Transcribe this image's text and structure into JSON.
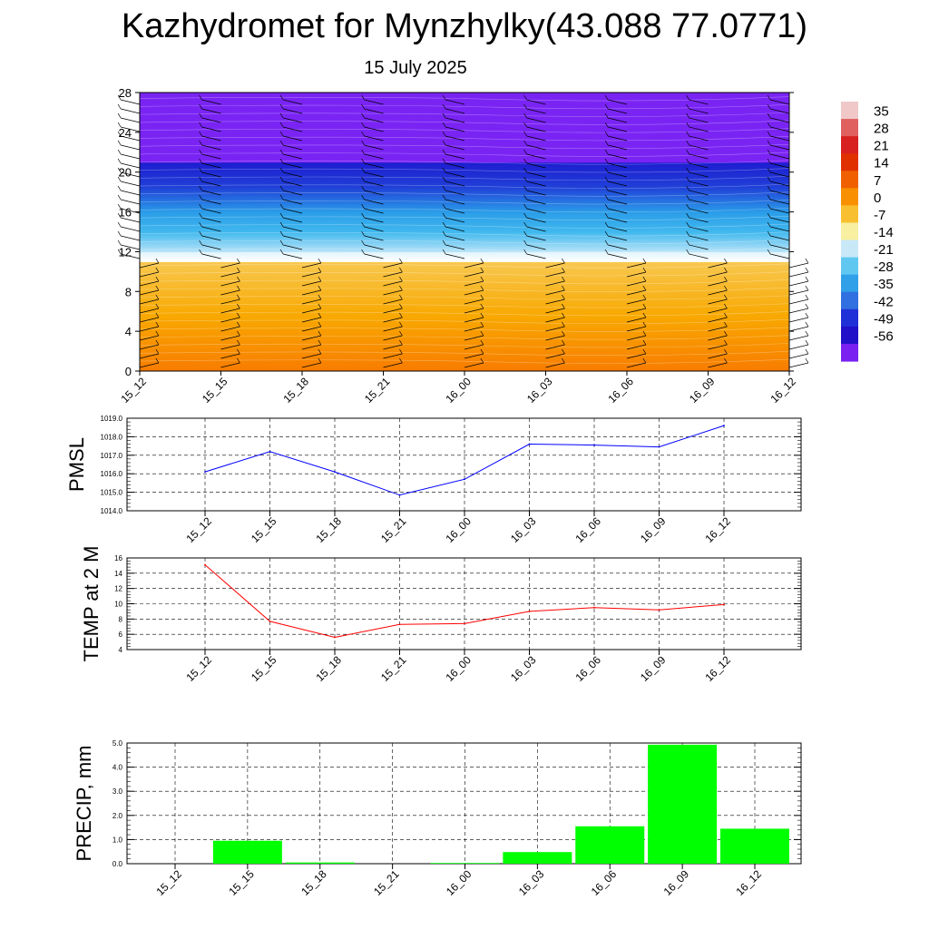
{
  "header": {
    "title": "Kazhydromet for Mynzhylky(43.088 77.0771)",
    "subtitle": "15 July 2025"
  },
  "chart_data": [
    {
      "type": "heatmap",
      "name": "cross-section",
      "x_ticks": [
        "15_12",
        "15_15",
        "15_18",
        "15_21",
        "16_00",
        "16_03",
        "16_06",
        "16_09",
        "16_12"
      ],
      "y_ticks": [
        "0",
        "4",
        "8",
        "12",
        "16",
        "20",
        "24",
        "28"
      ],
      "ylim": [
        0,
        28
      ],
      "colorbar_labels": [
        "35",
        "28",
        "21",
        "14",
        "7",
        "0",
        "-7",
        "-14",
        "-21",
        "-28",
        "-35",
        "-42",
        "-49",
        "-56"
      ],
      "colorbar_colors": [
        "#f0c8c8",
        "#e06060",
        "#d82020",
        "#e03000",
        "#f06000",
        "#f89000",
        "#f8c030",
        "#f8f0a0",
        "#c8e8f8",
        "#60c8f0",
        "#30a0e8",
        "#3070e0",
        "#2030d8",
        "#2010c8",
        "#7a20f0"
      ],
      "bands": [
        {
          "y": [
            0,
            11
          ],
          "colors": [
            "#f87c00",
            "#f8a800",
            "#f8c850"
          ]
        },
        {
          "y": [
            11,
            12
          ],
          "colors": [
            "#ffffff",
            "#e0f4fc"
          ]
        },
        {
          "y": [
            12,
            16
          ],
          "colors": [
            "#b8e4f8",
            "#40b8ee",
            "#2a9ce8"
          ]
        },
        {
          "y": [
            16,
            21
          ],
          "colors": [
            "#2a9ce8",
            "#2040d8",
            "#1e1cd0"
          ]
        },
        {
          "y": [
            21,
            28
          ],
          "colors": [
            "#7a24f4",
            "#7a24f4"
          ]
        }
      ]
    },
    {
      "type": "line",
      "ylabel": "PMSL",
      "ylim": [
        1014,
        1019
      ],
      "y_ticks": [
        "1014.0",
        "1015.0",
        "1016.0",
        "1017.0",
        "1018.0",
        "1019.0"
      ],
      "categories": [
        "15_12",
        "15_15",
        "15_18",
        "15_21",
        "16_00",
        "16_03",
        "16_06",
        "16_09",
        "16_12"
      ],
      "values": [
        1016.1,
        1017.2,
        1016.1,
        1014.85,
        1015.7,
        1017.6,
        1017.55,
        1017.45,
        1018.6
      ],
      "color": "#0000ff",
      "grid": true
    },
    {
      "type": "line",
      "ylabel": "TEMP at 2 M",
      "ylim": [
        4,
        16
      ],
      "y_ticks": [
        "4",
        "6",
        "8",
        "10",
        "12",
        "14",
        "16"
      ],
      "categories": [
        "15_12",
        "15_15",
        "15_18",
        "15_21",
        "16_00",
        "16_03",
        "16_06",
        "16_09",
        "16_12"
      ],
      "values": [
        15.1,
        7.7,
        5.6,
        7.3,
        7.4,
        9.0,
        9.5,
        9.2,
        9.9
      ],
      "color": "#ff0000",
      "grid": true
    },
    {
      "type": "bar",
      "ylabel": "PRECIP, mm",
      "ylim": [
        0,
        5
      ],
      "y_ticks": [
        "0.0",
        "1.0",
        "2.0",
        "3.0",
        "4.0",
        "5.0"
      ],
      "categories": [
        "15_12",
        "15_15",
        "15_18",
        "15_21",
        "16_00",
        "16_03",
        "16_06",
        "16_09",
        "16_12"
      ],
      "values": [
        0.0,
        0.95,
        0.05,
        0.0,
        0.03,
        0.48,
        1.55,
        4.93,
        1.45
      ],
      "color": "#00ff00",
      "grid": true
    }
  ]
}
